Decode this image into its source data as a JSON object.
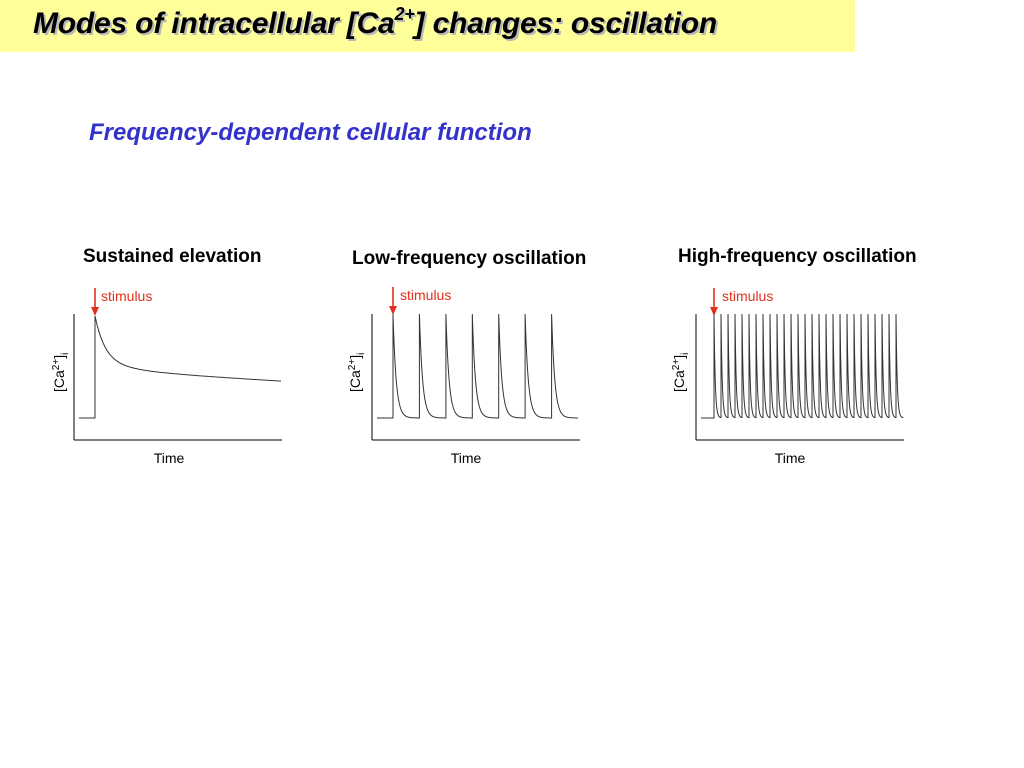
{
  "header": {
    "title_prefix": "Modes of intracellular [Ca",
    "title_sup": "2+",
    "title_suffix": "] changes: oscillation"
  },
  "subtitle": "Frequency-dependent cellular function",
  "colors": {
    "title_bar": "#ffff99",
    "subtitle": "#3333cc",
    "stimulus": "#e0301e",
    "trace": "#333333"
  },
  "panels": [
    {
      "title": "Sustained elevation",
      "stimulus_label": "stimulus",
      "y_label_main": "[Ca",
      "y_label_sup": "2+",
      "y_label_close": "]",
      "y_label_sub": "i",
      "x_label": "Time",
      "trace_type": "sustained"
    },
    {
      "title": "Low-frequency oscillation",
      "stimulus_label": "stimulus",
      "y_label_main": "[Ca",
      "y_label_sup": "2+",
      "y_label_close": "]",
      "y_label_sub": "i",
      "x_label": "Time",
      "trace_type": "oscillation",
      "spike_count": 7
    },
    {
      "title": "High-frequency oscillation",
      "stimulus_label": "stimulus",
      "y_label_main": "[Ca",
      "y_label_sup": "2+",
      "y_label_close": "]",
      "y_label_sub": "i",
      "x_label": "Time",
      "trace_type": "oscillation",
      "spike_count": 27
    }
  ]
}
